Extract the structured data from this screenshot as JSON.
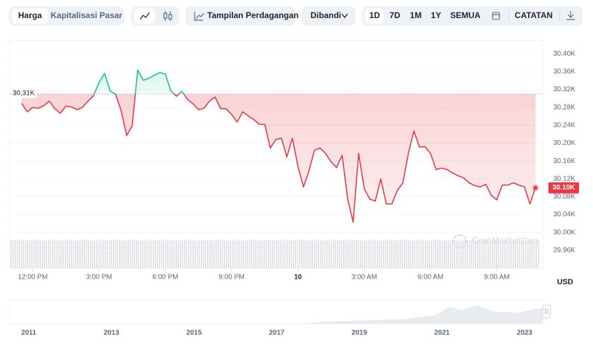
{
  "toolbar": {
    "price_tabs": [
      "Harga",
      "Kapitalisasi Pasar"
    ],
    "trading_view": "Tampilan Perdagangan",
    "compare": "Dibandi",
    "ranges": [
      "1D",
      "7D",
      "1M",
      "1Y",
      "SEMUA"
    ],
    "notes": "CATATAN"
  },
  "chart_data": {
    "type": "line",
    "x": [
      11.5,
      11.75,
      12,
      12.25,
      12.5,
      12.75,
      13,
      13.25,
      13.5,
      13.75,
      14,
      14.25,
      14.5,
      14.75,
      15,
      15.25,
      15.5,
      15.75,
      16,
      16.25,
      16.5,
      16.75,
      17,
      17.25,
      17.5,
      17.75,
      18,
      18.25,
      18.5,
      18.75,
      19,
      19.25,
      19.5,
      19.75,
      20,
      20.25,
      20.5,
      20.75,
      21,
      21.25,
      21.5,
      21.75,
      22,
      22.25,
      22.5,
      22.75,
      23,
      23.25,
      23.5,
      23.75,
      24,
      24.25,
      24.5,
      24.75,
      25,
      25.25,
      25.5,
      25.75,
      26,
      26.25,
      26.5,
      26.75,
      27,
      27.25,
      27.5,
      27.75,
      28,
      28.25,
      28.5,
      28.75,
      29,
      29.25,
      29.5,
      29.75,
      30,
      30.25,
      30.5,
      30.75,
      31,
      31.25,
      31.5,
      31.75,
      32,
      32.25,
      32.5,
      32.75,
      33,
      33.25,
      33.5,
      33.75,
      34,
      34.25,
      34.5,
      34.75
    ],
    "values": [
      30289,
      30270,
      30280,
      30278,
      30284,
      30294,
      30277,
      30267,
      30283,
      30281,
      30275,
      30280,
      30294,
      30306,
      30336,
      30356,
      30317,
      30309,
      30273,
      30217,
      30239,
      30364,
      30341,
      30345,
      30352,
      30358,
      30355,
      30317,
      30305,
      30316,
      30298,
      30288,
      30275,
      30278,
      30294,
      30303,
      30277,
      30277,
      30264,
      30247,
      30270,
      30261,
      30253,
      30242,
      30242,
      30189,
      30208,
      30211,
      30169,
      30211,
      30148,
      30102,
      30138,
      30184,
      30189,
      30177,
      30158,
      30145,
      30173,
      30075,
      30023,
      30177,
      30098,
      30075,
      30070,
      30120,
      30064,
      30064,
      30094,
      30111,
      30177,
      30227,
      30191,
      30192,
      30177,
      30141,
      30144,
      30141,
      30133,
      30127,
      30122,
      30111,
      30105,
      30102,
      30108,
      30083,
      30073,
      30106,
      30106,
      30111,
      30106,
      30102,
      30064,
      30100
    ],
    "colors": {
      "above": "#16c784",
      "below": "#ea3943"
    },
    "baseline": {
      "value": 30310,
      "label": "30,31K"
    },
    "last_price": {
      "value": 30100,
      "label": "30.10K"
    },
    "currency": "USD",
    "watermark": "CoinMarketCap",
    "xlim": [
      10.96,
      35.08
    ],
    "xticks": [
      {
        "value": 12,
        "label": "12:00 PM"
      },
      {
        "value": 15,
        "label": "3:00 PM"
      },
      {
        "value": 18,
        "label": "6:00 PM"
      },
      {
        "value": 21,
        "label": "9:00 PM"
      },
      {
        "value": 24,
        "label": "10"
      },
      {
        "value": 27,
        "label": "3:00 AM"
      },
      {
        "value": 30,
        "label": "6:00 AM"
      },
      {
        "value": 33,
        "label": "9:00 AM"
      }
    ],
    "ylim": [
      29920,
      30430
    ],
    "yticks": [
      {
        "value": 30400,
        "label": "30.40K"
      },
      {
        "value": 30360,
        "label": "30.36K"
      },
      {
        "value": 30320,
        "label": "30.32K"
      },
      {
        "value": 30280,
        "label": "30.28K"
      },
      {
        "value": 30240,
        "label": "30.24K"
      },
      {
        "value": 30200,
        "label": "30.20K"
      },
      {
        "value": 30160,
        "label": "30.16K"
      },
      {
        "value": 30120,
        "label": "30.12K"
      },
      {
        "value": 30080,
        "label": "30.08K"
      },
      {
        "value": 30040,
        "label": "30.04K"
      },
      {
        "value": 30000,
        "label": "30.00K"
      },
      {
        "value": 29960,
        "label": "29.96K"
      }
    ],
    "grid": true,
    "navigator": {
      "xlim": [
        2010.54,
        2023.44
      ],
      "xticks": [
        2011,
        2013,
        2015,
        2017,
        2019,
        2021,
        2023
      ]
    }
  }
}
